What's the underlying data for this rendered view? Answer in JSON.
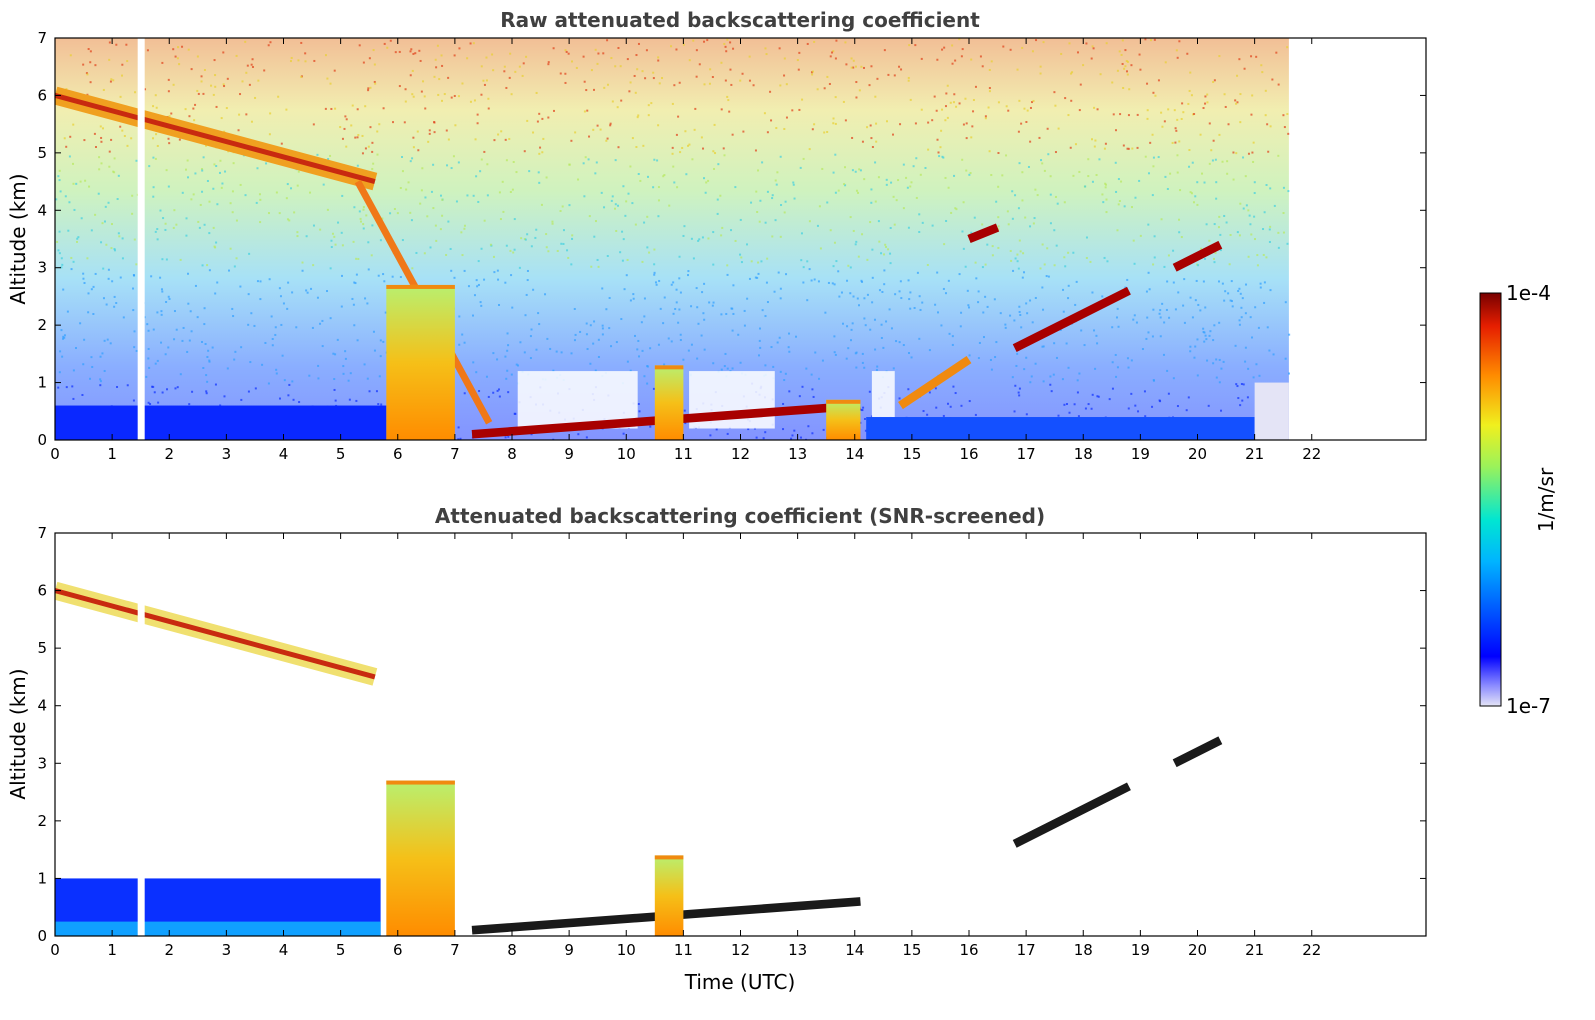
{
  "chart_data": [
    {
      "type": "heatmap",
      "title": "Raw attenuated backscattering coefficient",
      "xlabel": "",
      "ylabel": "Altitude (km)",
      "xlim": [
        0,
        24
      ],
      "ylim": [
        0,
        7
      ],
      "xticks": [
        "0",
        "1",
        "2",
        "3",
        "4",
        "5",
        "6",
        "7",
        "8",
        "9",
        "10",
        "11",
        "12",
        "13",
        "14",
        "15",
        "16",
        "17",
        "18",
        "19",
        "20",
        "21",
        "22"
      ],
      "yticks": [
        "0",
        "1",
        "2",
        "3",
        "4",
        "5",
        "6",
        "7"
      ],
      "data_extent_hours": [
        0,
        21.6
      ],
      "missing_data_gap_hours": 1.5,
      "features": [
        {
          "feature": "high cloud layer",
          "time_range": [
            0,
            5.6
          ],
          "altitude_km": [
            6.0,
            4.5
          ],
          "intensity": "high"
        },
        {
          "feature": "descending precipitation / cloud",
          "time_range": [
            5.3,
            7.6
          ],
          "altitude_km": [
            4.5,
            0.3
          ],
          "intensity": "high"
        },
        {
          "feature": "rain shaft",
          "time_range": [
            5.8,
            7.0
          ],
          "altitude_km": [
            2.7,
            0
          ],
          "intensity": "high"
        },
        {
          "feature": "low cloud layer",
          "time_range": [
            7.3,
            14.1
          ],
          "altitude_km": [
            0.1,
            0.6
          ],
          "intensity": "very high"
        },
        {
          "feature": "convective cell",
          "time_range": [
            10.5,
            11.0
          ],
          "altitude_km": [
            1.3,
            0
          ],
          "intensity": "high"
        },
        {
          "feature": "precipitation",
          "time_range": [
            13.5,
            14.1
          ],
          "altitude_km": [
            0.7,
            0
          ],
          "intensity": "high"
        },
        {
          "feature": "low cloud",
          "time_range": [
            14.8,
            16.0
          ],
          "altitude_km": [
            0.6,
            1.4
          ],
          "intensity": "high"
        },
        {
          "feature": "ascending mid-level layer",
          "time_range": [
            16.8,
            18.8
          ],
          "altitude_km": [
            1.6,
            2.6
          ],
          "intensity": "very high"
        },
        {
          "feature": "mid-level cloud",
          "time_range": [
            19.6,
            20.4
          ],
          "altitude_km": [
            3.0,
            3.4
          ],
          "intensity": "very high"
        },
        {
          "feature": "isolated cloud",
          "time_range": [
            16.0,
            16.5
          ],
          "altitude_km": [
            3.5,
            3.7
          ],
          "intensity": "very high"
        }
      ]
    },
    {
      "type": "heatmap",
      "title": "Attenuated backscattering coefficient (SNR-screened)",
      "xlabel": "Time (UTC)",
      "ylabel": "Altitude (km)",
      "xlim": [
        0,
        24
      ],
      "ylim": [
        0,
        7
      ],
      "xticks": [
        "0",
        "1",
        "2",
        "3",
        "4",
        "5",
        "6",
        "7",
        "8",
        "9",
        "10",
        "11",
        "12",
        "13",
        "14",
        "15",
        "16",
        "17",
        "18",
        "19",
        "20",
        "21",
        "22"
      ],
      "yticks": [
        "0",
        "1",
        "2",
        "3",
        "4",
        "5",
        "6",
        "7"
      ],
      "data_extent_hours": [
        0,
        21.6
      ],
      "missing_data_gap_hours": 1.5,
      "features": [
        {
          "feature": "high cloud layer",
          "time_range": [
            0,
            5.6
          ],
          "altitude_km": [
            6.0,
            4.5
          ],
          "intensity": "high"
        },
        {
          "feature": "boundary layer aerosol",
          "time_range": [
            0,
            5.7
          ],
          "altitude_km": [
            0,
            1.0
          ],
          "intensity": "low"
        },
        {
          "feature": "rain shaft",
          "time_range": [
            5.8,
            7.0
          ],
          "altitude_km": [
            2.7,
            0
          ],
          "intensity": "high"
        },
        {
          "feature": "low cloud layer",
          "time_range": [
            7.3,
            14.1
          ],
          "altitude_km": [
            0.1,
            0.6
          ],
          "intensity": "very high"
        },
        {
          "feature": "convective cell",
          "time_range": [
            10.5,
            11.0
          ],
          "altitude_km": [
            1.4,
            0
          ],
          "intensity": "high"
        },
        {
          "feature": "ascending mid-level layer",
          "time_range": [
            16.8,
            18.8
          ],
          "altitude_km": [
            1.6,
            2.6
          ],
          "intensity": "very high"
        },
        {
          "feature": "mid-level cloud",
          "time_range": [
            19.6,
            20.4
          ],
          "altitude_km": [
            3.0,
            3.4
          ],
          "intensity": "very high"
        }
      ]
    }
  ],
  "colorbar": {
    "label": "1/m/sr",
    "max_label": "1e-4",
    "min_label": "1e-7",
    "colormap": "jet",
    "colors": [
      "#e4e4f6",
      "#0000ff",
      "#00b4ff",
      "#00e6d2",
      "#9bf25a",
      "#f0f01e",
      "#ff8c00",
      "#e61e00",
      "#780000"
    ]
  }
}
